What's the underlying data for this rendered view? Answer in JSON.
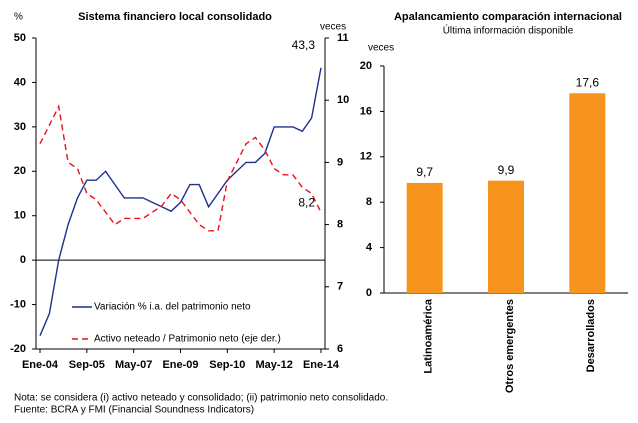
{
  "chart_data": [
    {
      "type": "line",
      "title": "Sistema financiero local consolidado",
      "y_label": "%",
      "y2_label": "veces",
      "categories": [
        "Ene-04",
        null,
        null,
        null,
        null,
        "Sep-05",
        null,
        null,
        null,
        null,
        "May-07",
        null,
        null,
        null,
        null,
        "Ene-09",
        null,
        null,
        null,
        null,
        "Sep-10",
        null,
        null,
        null,
        null,
        "May-12",
        null,
        null,
        null,
        null,
        "Ene-14"
      ],
      "ylim": [
        -20,
        50
      ],
      "yticks": [
        -20,
        -10,
        0,
        10,
        20,
        30,
        40,
        50
      ],
      "y2lim": [
        6,
        11
      ],
      "y2ticks": [
        6,
        7,
        8,
        9,
        10,
        11
      ],
      "series": [
        {
          "name": "Variación % i.a. del patrimonio neto",
          "color": "#1f2f8f",
          "dash": false,
          "values": [
            -17,
            -12,
            0,
            8,
            14,
            18,
            18,
            20,
            17,
            14,
            14,
            14,
            13,
            12,
            11,
            13,
            17,
            17,
            12,
            15,
            18,
            20,
            22,
            22,
            24,
            30,
            30,
            30,
            29,
            32,
            43.3
          ],
          "value_labels": [
            null,
            null,
            null,
            null,
            null,
            null,
            null,
            null,
            null,
            null,
            null,
            null,
            null,
            null,
            null,
            null,
            null,
            null,
            null,
            null,
            null,
            null,
            null,
            null,
            null,
            null,
            null,
            null,
            null,
            null,
            "43,3"
          ]
        },
        {
          "name": "Activo neteado / Patrimonio neto (eje der.)",
          "color": "#e8101a",
          "dash": true,
          "axis": "y2",
          "values": [
            9.3,
            9.6,
            9.9,
            9.0,
            8.9,
            8.5,
            8.4,
            8.2,
            8.0,
            8.1,
            8.1,
            8.1,
            8.2,
            8.3,
            8.5,
            8.4,
            8.2,
            8.0,
            7.9,
            7.9,
            8.7,
            9.0,
            9.3,
            9.4,
            9.2,
            8.9,
            8.8,
            8.8,
            8.6,
            8.5,
            8.2
          ],
          "value_labels": [
            null,
            null,
            null,
            null,
            null,
            null,
            null,
            null,
            null,
            null,
            null,
            null,
            null,
            null,
            null,
            null,
            null,
            null,
            null,
            null,
            null,
            null,
            null,
            null,
            null,
            null,
            null,
            null,
            null,
            null,
            "8,2"
          ]
        }
      ]
    },
    {
      "type": "bar",
      "title": "Apalancamiento comparación internacional",
      "subtitle": "Última información disponible",
      "y_label": "veces",
      "categories": [
        "Latinoamérica",
        "Otros emergentes",
        "Desarrollados"
      ],
      "values": [
        9.7,
        9.9,
        17.6
      ],
      "value_labels": [
        "9,7",
        "9,9",
        "17,6"
      ],
      "color": "#f7941d",
      "ylim": [
        0,
        20
      ],
      "yticks": [
        0,
        4,
        8,
        12,
        16,
        20
      ]
    }
  ],
  "notes": [
    "Nota: se considera (i) activo neteado y consolidado; (ii) patrimonio neto consolidado.",
    "Fuente: BCRA y FMI (Financial Soundness Indicators)"
  ]
}
